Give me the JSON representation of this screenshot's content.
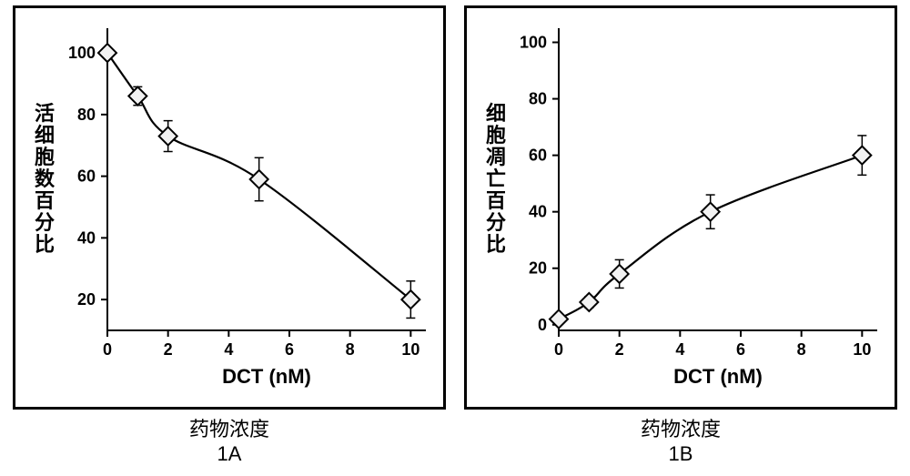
{
  "figure": {
    "background_color": "#ffffff",
    "frame_border_color": "#000000",
    "frame_border_width": 3,
    "axis_color": "#000000",
    "axis_width": 2,
    "tick_length": 7,
    "tick_width": 2,
    "tick_label_fontsize": 18,
    "tick_label_fontweight": "bold",
    "axis_title_fontsize": 22,
    "axis_title_fontweight": "bold",
    "y_title_rotation": -90,
    "marker": {
      "shape": "diamond",
      "size": 10,
      "fill": "#f2f2f2",
      "stroke": "#000000",
      "stroke_width": 2
    },
    "line": {
      "color": "#000000",
      "width": 2.2,
      "smooth": true
    },
    "errorbar": {
      "color": "#000000",
      "width": 1.5,
      "cap_width": 10
    },
    "panelA": {
      "sub_id": "1A",
      "x_label": "DCT (nM)",
      "x_label2": "药物浓度",
      "y_label": "活细胞数百分比",
      "xlim": [
        0,
        10.5
      ],
      "ylim": [
        10,
        108
      ],
      "x_ticks": [
        0,
        2,
        4,
        6,
        8,
        10
      ],
      "y_ticks": [
        20,
        40,
        60,
        80,
        100
      ],
      "x_tick_labels": [
        "0",
        "2",
        "4",
        "6",
        "8",
        "10"
      ],
      "y_tick_labels": [
        "20",
        "40",
        "60",
        "80",
        "100"
      ],
      "series": {
        "x": [
          0,
          1,
          2,
          5,
          10
        ],
        "y": [
          100,
          86,
          73,
          59,
          20
        ],
        "y_err": [
          0,
          3,
          5,
          7,
          6
        ]
      }
    },
    "panelB": {
      "sub_id": "1B",
      "x_label": "DCT (nM)",
      "x_label2": "药物浓度",
      "y_label": "细胞凋亡百分比",
      "xlim": [
        0,
        10.5
      ],
      "ylim": [
        -2,
        105
      ],
      "x_ticks": [
        0,
        2,
        4,
        6,
        8,
        10
      ],
      "y_ticks": [
        0,
        20,
        40,
        60,
        80,
        100
      ],
      "x_tick_labels": [
        "0",
        "2",
        "4",
        "6",
        "8",
        "10"
      ],
      "y_tick_labels": [
        "0",
        "20",
        "40",
        "60",
        "80",
        "100"
      ],
      "series": {
        "x": [
          0,
          1,
          2,
          5,
          10
        ],
        "y": [
          2,
          8,
          18,
          40,
          60
        ],
        "y_err": [
          0,
          2,
          5,
          6,
          7
        ]
      }
    }
  }
}
